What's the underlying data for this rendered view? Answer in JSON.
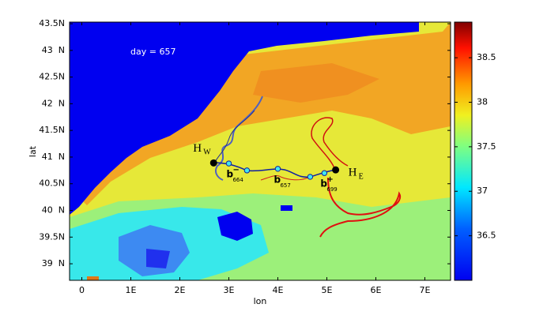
{
  "chart_data": {
    "type": "heatmap",
    "annotation": "day = 657",
    "xlabel": "lon",
    "ylabel": "lat",
    "xlim": [
      -0.25,
      7.525
    ],
    "xticks": [
      0,
      {
        "value": 1,
        "label": "1E"
      },
      {
        "value": 2,
        "label": "2E"
      },
      {
        "value": 3,
        "label": "3E"
      },
      {
        "value": 4,
        "label": "4E"
      },
      {
        "value": 5,
        "label": "5E"
      },
      {
        "value": 6,
        "label": "6E"
      },
      {
        "value": 7,
        "label": "7E"
      }
    ],
    "ylim": [
      38.69,
      43.53
    ],
    "yticks": [
      {
        "value": 39,
        "label": "39  N"
      },
      {
        "value": 39.5,
        "label": "39.5N"
      },
      {
        "value": 40,
        "label": "40  N"
      },
      {
        "value": 40.5,
        "label": "40.5N"
      },
      {
        "value": 41,
        "label": "41  N"
      },
      {
        "value": 41.5,
        "label": "41.5N"
      },
      {
        "value": 42,
        "label": "42  N"
      },
      {
        "value": 42.5,
        "label": "42.5N"
      },
      {
        "value": 43,
        "label": "43  N"
      },
      {
        "value": 43.5,
        "label": "43.5N"
      }
    ],
    "colorbar": {
      "lim": [
        36.0,
        38.9
      ],
      "ticks": [
        36.5,
        37,
        37.5,
        38,
        38.5
      ]
    },
    "eddies": [
      {
        "name": "H",
        "subscript": "W",
        "lon": 2.69,
        "lat": 40.89
      },
      {
        "name": "H",
        "subscript": "E",
        "lon": 5.18,
        "lat": 40.76
      }
    ],
    "drifters": [
      {
        "lon": 3.0,
        "lat": 40.88
      },
      {
        "lon": 3.37,
        "lat": 40.75
      },
      {
        "lon": 4.0,
        "lat": 40.78
      },
      {
        "lon": 4.66,
        "lat": 40.63
      },
      {
        "lon": 4.95,
        "lat": 40.7
      }
    ],
    "drifter_labels": [
      {
        "text": "b",
        "sup": "−",
        "sub": "664"
      },
      {
        "text": "b",
        "sub": "657"
      },
      {
        "text": "b",
        "sup": "+",
        "sub": "699"
      }
    ]
  }
}
